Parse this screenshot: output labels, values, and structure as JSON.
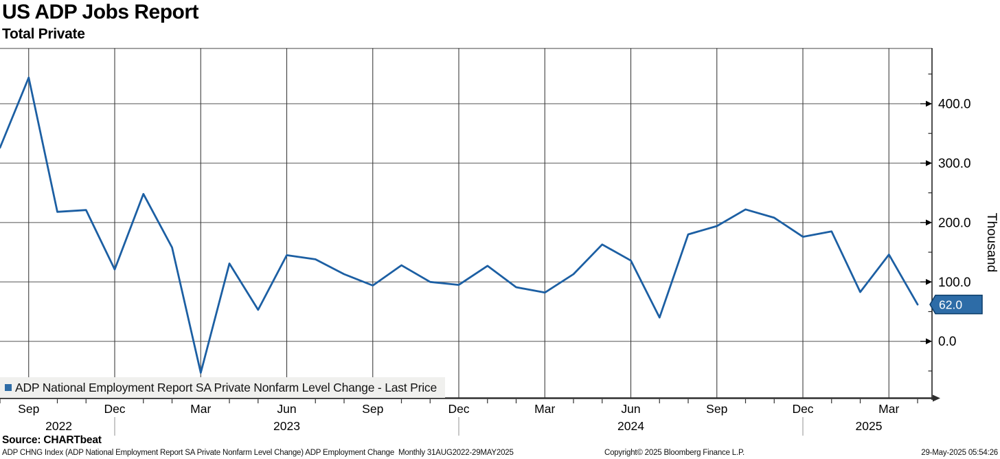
{
  "header": {
    "title": "US ADP Jobs Report",
    "subtitle": "Total Private"
  },
  "legend": {
    "label": "ADP National Employment Report SA Private Nonfarm Level Change - Last Price",
    "marker_color": "#2e6ca6"
  },
  "source_label": "Source: CHARTbeat",
  "footer": {
    "left": "ADP CHNG Index (ADP National Employment Report SA Private Nonfarm Level Change) ADP Employment Change  Monthly 31AUG2022-29MAY2025",
    "center": "Copyright© 2025 Bloomberg Finance L.P.",
    "right": "29-May-2025 05:54:26"
  },
  "colors": {
    "line": "#1c5fa3",
    "flag_fill": "#2d6ca7",
    "flag_border": "#0c3c68",
    "flag_text": "#ffffff",
    "h_grid": "#828282",
    "v_grid": "#3d3d3d",
    "axis": "#2e2e2e",
    "legend_bg": "#f0f0ee"
  },
  "chart_data": {
    "type": "line",
    "title": "US ADP Jobs Report",
    "subtitle": "Total Private",
    "unit_label": "Thousand",
    "legend_position": "bottom-left",
    "grid": true,
    "frequency": "Monthly",
    "range_shown": "31AUG2022-29MAY2025",
    "x": [
      "Aug 2022",
      "Sep 2022",
      "Oct 2022",
      "Nov 2022",
      "Dec 2022",
      "Jan 2023",
      "Feb 2023",
      "Mar 2023",
      "Apr 2023",
      "May 2023",
      "Jun 2023",
      "Jul 2023",
      "Aug 2023",
      "Sep 2023",
      "Oct 2023",
      "Nov 2023",
      "Dec 2023",
      "Jan 2024",
      "Feb 2024",
      "Mar 2024",
      "Apr 2024",
      "May 2024",
      "Jun 2024",
      "Jul 2024",
      "Aug 2024",
      "Sep 2024",
      "Oct 2024",
      "Nov 2024",
      "Dec 2024",
      "Jan 2025",
      "Feb 2025",
      "Mar 2025",
      "Apr 2025"
    ],
    "series": [
      {
        "name": "ADP National Employment Report SA Private Nonfarm Level Change - Last Price",
        "color": "#1c5fa3",
        "values": [
          326,
          444,
          218,
          221,
          121,
          248,
          158,
          -53,
          131,
          53,
          145,
          138,
          113,
          94,
          128,
          100,
          95,
          127,
          91,
          82,
          113,
          163,
          136,
          40,
          180,
          194,
          222,
          208,
          176,
          185,
          83,
          146,
          62
        ]
      }
    ],
    "last_value": 62.0,
    "last_value_label": "62.0",
    "ylim": [
      -96,
      493
    ],
    "y_ticks": [
      {
        "value": 0,
        "label": "0.0"
      },
      {
        "value": 100,
        "label": "100.0"
      },
      {
        "value": 200,
        "label": "200.0"
      },
      {
        "value": 300,
        "label": "300.0"
      },
      {
        "value": 400,
        "label": "400.0"
      }
    ],
    "y_minor_ticks": [
      -50,
      50,
      150,
      250,
      350,
      450
    ],
    "x_ticks": [
      {
        "index": 1,
        "label": "Sep"
      },
      {
        "index": 4,
        "label": "Dec"
      },
      {
        "index": 7,
        "label": "Mar"
      },
      {
        "index": 10,
        "label": "Jun"
      },
      {
        "index": 13,
        "label": "Sep"
      },
      {
        "index": 16,
        "label": "Dec"
      },
      {
        "index": 19,
        "label": "Mar"
      },
      {
        "index": 22,
        "label": "Jun"
      },
      {
        "index": 25,
        "label": "Sep"
      },
      {
        "index": 28,
        "label": "Dec"
      },
      {
        "index": 31,
        "label": "Mar"
      }
    ],
    "year_labels": [
      {
        "index": 2.05,
        "label": "2022"
      },
      {
        "index": 10,
        "label": "2023"
      },
      {
        "index": 22,
        "label": "2024"
      },
      {
        "index": 30.3,
        "label": "2025"
      }
    ],
    "year_divider_indices": [
      4,
      16,
      28
    ]
  }
}
